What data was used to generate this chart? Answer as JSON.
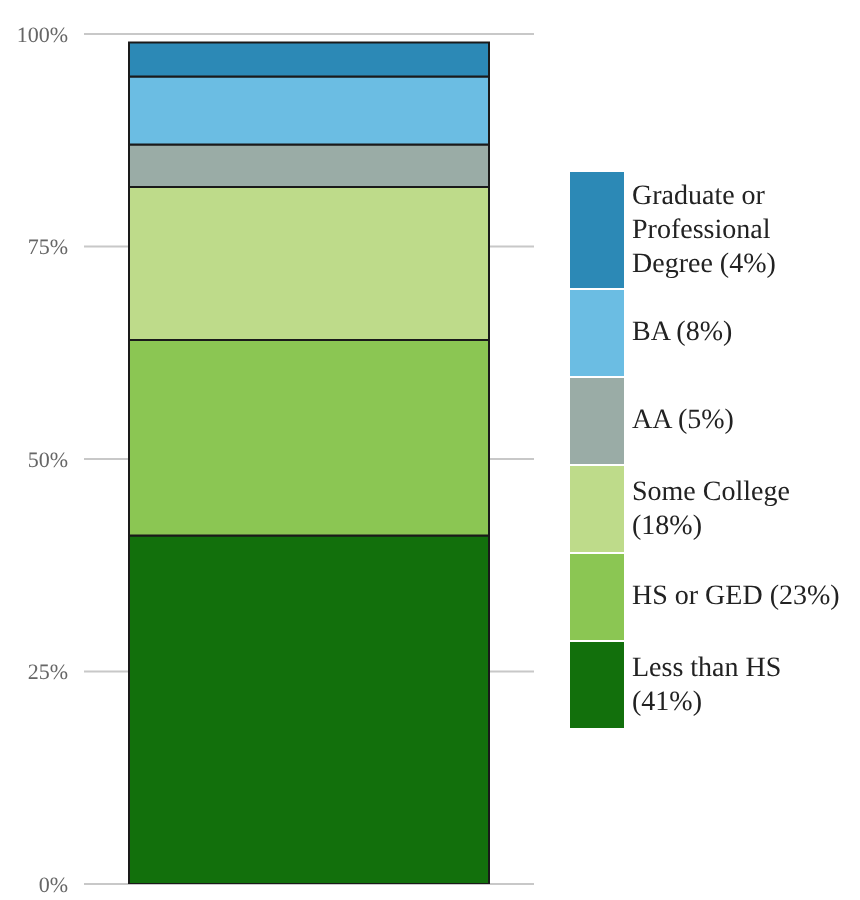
{
  "chart_data": {
    "type": "bar",
    "stacked": true,
    "categories": [
      null
    ],
    "series": [
      {
        "name": "Less than HS (41%)",
        "color": "#12700c",
        "values": [
          41
        ]
      },
      {
        "name": "HS or GED (23%)",
        "color": "#8bc653",
        "values": [
          23
        ]
      },
      {
        "name": "Some College (18%)",
        "color": "#bedb8a",
        "values": [
          18
        ]
      },
      {
        "name": "AA (5%)",
        "color": "#9aaca6",
        "values": [
          5
        ]
      },
      {
        "name": "BA (8%)",
        "color": "#6bbde3",
        "values": [
          8
        ]
      },
      {
        "name": "Graduate or Professional Degree (4%)",
        "color": "#2c89b6",
        "values": [
          4
        ]
      }
    ],
    "ylim": [
      0,
      100
    ],
    "yticks": [
      {
        "value": 0,
        "label": "0%"
      },
      {
        "value": 25,
        "label": "25%"
      },
      {
        "value": 50,
        "label": "50%"
      },
      {
        "value": 75,
        "label": "75%"
      },
      {
        "value": 100,
        "label": "100%"
      }
    ],
    "grid": "y",
    "legend": "right",
    "tick_labels": "y"
  }
}
